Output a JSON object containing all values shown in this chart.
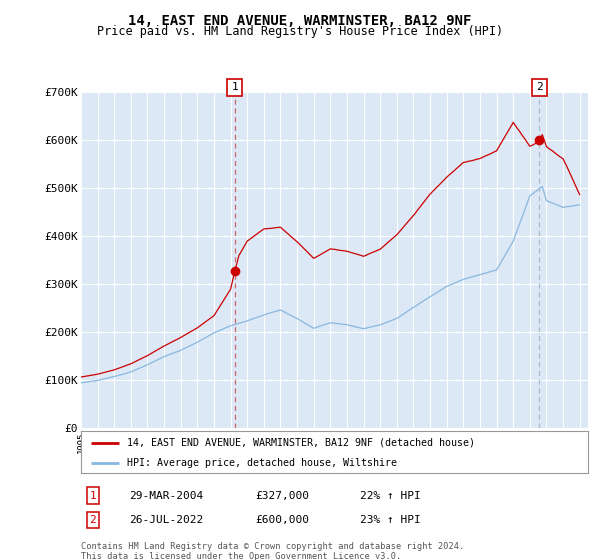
{
  "title": "14, EAST END AVENUE, WARMINSTER, BA12 9NF",
  "subtitle": "Price paid vs. HM Land Registry's House Price Index (HPI)",
  "ylim": [
    0,
    700000
  ],
  "yticks": [
    0,
    100000,
    200000,
    300000,
    400000,
    500000,
    600000,
    700000
  ],
  "ytick_labels": [
    "£0",
    "£100K",
    "£200K",
    "£300K",
    "£400K",
    "£500K",
    "£600K",
    "£700K"
  ],
  "background_color": "#dce8f5",
  "figure_color": "#ffffff",
  "grid_color": "#ffffff",
  "line1_color": "#cc0000",
  "line2_color": "#88b8e0",
  "marker_color": "#cc0000",
  "annotation_border_color": "#cc0000",
  "vline1_color": "#cc6666",
  "vline2_color": "#aabbcc",
  "legend_label1": "14, EAST END AVENUE, WARMINSTER, BA12 9NF (detached house)",
  "legend_label2": "HPI: Average price, detached house, Wiltshire",
  "footnote": "Contains HM Land Registry data © Crown copyright and database right 2024.\nThis data is licensed under the Open Government Licence v3.0.",
  "point1_label": "1",
  "point1_date": "29-MAR-2004",
  "point1_price": "£327,000",
  "point1_hpi": "22% ↑ HPI",
  "point1_year": 2004.25,
  "point1_value": 327000,
  "point2_label": "2",
  "point2_date": "26-JUL-2022",
  "point2_price": "£600,000",
  "point2_hpi": "23% ↑ HPI",
  "point2_year": 2022.58,
  "point2_value": 600000,
  "xlim_min": 1995.0,
  "xlim_max": 2025.5
}
